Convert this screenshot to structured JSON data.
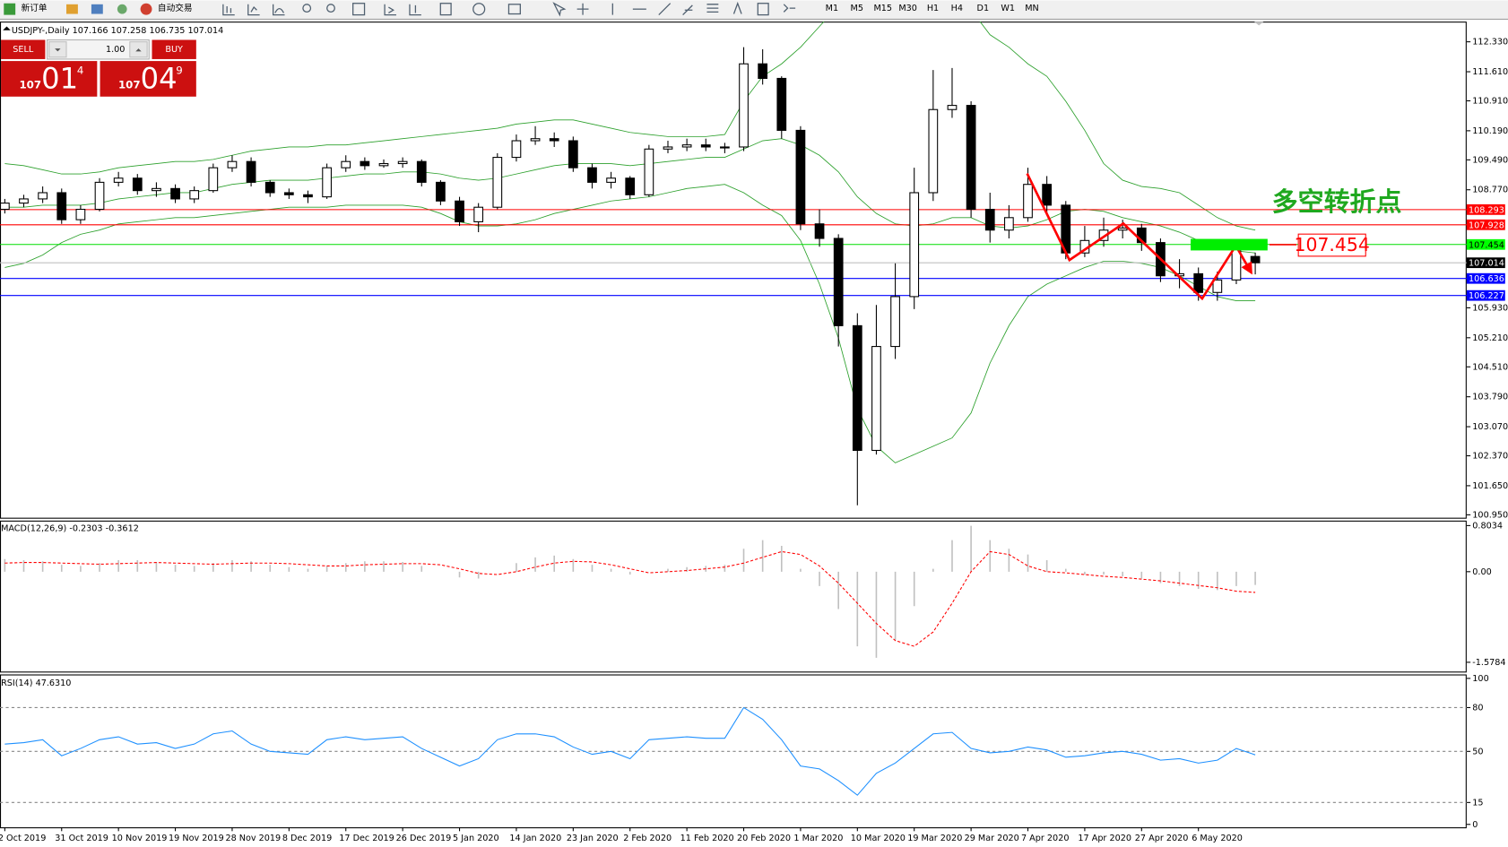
{
  "toolbar": {
    "new_order": "新订单",
    "auto_trading": "自动交易",
    "timeframes": [
      "M1",
      "M5",
      "M15",
      "M30",
      "H1",
      "H4",
      "D1",
      "W1",
      "MN"
    ]
  },
  "trade_panel": {
    "sell": "SELL",
    "buy": "BUY",
    "lots": "1.00",
    "sell_price": [
      "107",
      "01",
      "4"
    ],
    "buy_price": [
      "107",
      "04",
      "9"
    ]
  },
  "annotation": "多空转折点",
  "chart_data": [
    {
      "type": "candlestick",
      "title": "USDJPY-,Daily  107.166 107.258 106.735 107.014",
      "categories": [
        "2 Oct 2019",
        null,
        null,
        "31 Oct 2019",
        null,
        null,
        "10 Nov 2019",
        null,
        null,
        "19 Nov 2019",
        null,
        null,
        "28 Nov 2019",
        null,
        null,
        "8 Dec 2019",
        null,
        null,
        "17 Dec 2019",
        null,
        null,
        "26 Dec 2019",
        null,
        null,
        "5 Jan 2020",
        null,
        null,
        "14 Jan 2020",
        null,
        null,
        "23 Jan 2020",
        null,
        null,
        "2 Feb 2020",
        null,
        null,
        "11 Feb 2020",
        null,
        null,
        "20 Feb 2020",
        null,
        null,
        "1 Mar 2020",
        null,
        null,
        "10 Mar 2020",
        null,
        null,
        "19 Mar 2020",
        null,
        null,
        "29 Mar 2020",
        null,
        null,
        "7 Apr 2020",
        null,
        null,
        "17 Apr 2020",
        null,
        null,
        "27 Apr 2020",
        null,
        null,
        "6 May 2020",
        null,
        null,
        null
      ],
      "open": [
        108.3,
        108.45,
        108.55,
        108.7,
        108.05,
        108.3,
        108.95,
        109.05,
        108.75,
        108.8,
        108.55,
        108.75,
        109.3,
        109.45,
        108.95,
        108.7,
        108.65,
        108.6,
        109.3,
        109.45,
        109.35,
        109.4,
        109.45,
        108.95,
        108.5,
        108.0,
        108.35,
        109.55,
        109.95,
        110.0,
        109.95,
        109.3,
        108.95,
        109.05,
        108.65,
        109.75,
        109.8,
        109.85,
        109.8,
        109.8,
        111.8,
        111.45,
        110.2,
        107.95,
        107.6,
        105.5,
        102.5,
        105.0,
        106.2,
        108.7,
        110.7,
        110.8,
        108.3,
        107.8,
        108.1,
        108.9,
        108.4,
        107.25,
        107.55,
        107.8,
        107.85,
        107.5,
        106.7,
        106.75,
        106.3,
        106.6,
        107.166
      ],
      "high": [
        108.55,
        108.65,
        108.85,
        108.8,
        108.4,
        109.05,
        109.2,
        109.15,
        108.95,
        108.9,
        108.85,
        109.4,
        109.6,
        109.55,
        109.0,
        108.8,
        108.75,
        109.4,
        109.6,
        109.55,
        109.5,
        109.55,
        109.5,
        109.0,
        108.6,
        108.45,
        109.65,
        110.1,
        110.3,
        110.15,
        110.05,
        109.4,
        109.2,
        109.1,
        109.85,
        109.95,
        110.0,
        110.0,
        109.9,
        112.2,
        112.15,
        111.5,
        110.3,
        108.3,
        107.7,
        105.8,
        106.0,
        107.0,
        109.3,
        111.65,
        111.7,
        110.9,
        108.7,
        108.4,
        109.3,
        109.1,
        108.5,
        107.9,
        108.1,
        108.05,
        107.95,
        107.6,
        107.1,
        106.9,
        106.8,
        107.55,
        107.258
      ],
      "low": [
        108.2,
        108.35,
        108.45,
        107.95,
        107.95,
        108.25,
        108.85,
        108.65,
        108.6,
        108.45,
        108.45,
        108.7,
        109.2,
        108.85,
        108.6,
        108.55,
        108.45,
        108.55,
        109.2,
        109.25,
        109.3,
        109.3,
        108.85,
        108.4,
        107.9,
        107.75,
        108.3,
        109.45,
        109.85,
        109.8,
        109.2,
        108.8,
        108.8,
        108.55,
        108.6,
        109.65,
        109.7,
        109.7,
        109.65,
        109.7,
        111.3,
        110.0,
        107.8,
        107.4,
        105.0,
        101.18,
        102.4,
        104.7,
        105.9,
        108.5,
        110.5,
        108.1,
        107.5,
        107.6,
        108.0,
        108.2,
        107.1,
        107.15,
        107.4,
        107.6,
        107.3,
        106.55,
        106.4,
        106.1,
        106.1,
        106.5,
        106.735
      ],
      "close": [
        108.45,
        108.55,
        108.7,
        108.05,
        108.3,
        108.95,
        109.05,
        108.75,
        108.8,
        108.55,
        108.75,
        109.3,
        109.45,
        108.95,
        108.7,
        108.65,
        108.6,
        109.3,
        109.45,
        109.35,
        109.4,
        109.45,
        108.95,
        108.5,
        108.0,
        108.35,
        109.55,
        109.95,
        110.0,
        109.95,
        109.3,
        108.95,
        109.05,
        108.65,
        109.75,
        109.8,
        109.85,
        109.8,
        109.8,
        111.8,
        111.45,
        110.2,
        107.95,
        107.6,
        105.5,
        102.5,
        105.0,
        106.2,
        108.7,
        110.7,
        110.8,
        108.3,
        107.8,
        108.1,
        108.9,
        108.4,
        107.25,
        107.55,
        107.8,
        107.85,
        107.5,
        106.7,
        106.75,
        106.3,
        106.6,
        107.45,
        107.014
      ],
      "bands": [
        {
          "color": "#2ca02c",
          "values": [
            109.4,
            109.35,
            109.25,
            109.15,
            109.15,
            109.2,
            109.3,
            109.35,
            109.4,
            109.45,
            109.45,
            109.5,
            109.6,
            109.7,
            109.75,
            109.8,
            109.8,
            109.85,
            109.85,
            109.9,
            109.95,
            110.0,
            110.05,
            110.1,
            110.15,
            110.2,
            110.25,
            110.35,
            110.4,
            110.45,
            110.45,
            110.35,
            110.25,
            110.15,
            110.1,
            110.05,
            110.05,
            110.05,
            110.1,
            110.9,
            111.5,
            111.8,
            112.2,
            112.7,
            113.2,
            113.6,
            113.8,
            113.7,
            113.4,
            113.2,
            113.3,
            113.1,
            112.5,
            112.2,
            111.8,
            111.5,
            110.9,
            110.2,
            109.4,
            109.0,
            108.85,
            108.8,
            108.7,
            108.4,
            108.1,
            107.9,
            107.8
          ]
        },
        {
          "color": "#2ca02c",
          "values": [
            108.35,
            108.35,
            108.4,
            108.4,
            108.4,
            108.45,
            108.55,
            108.6,
            108.65,
            108.7,
            108.7,
            108.8,
            108.9,
            108.95,
            109.0,
            109.0,
            109.0,
            109.05,
            109.1,
            109.15,
            109.15,
            109.2,
            109.2,
            109.15,
            109.05,
            109.0,
            109.05,
            109.15,
            109.25,
            109.35,
            109.4,
            109.4,
            109.4,
            109.35,
            109.4,
            109.45,
            109.5,
            109.55,
            109.55,
            109.75,
            109.95,
            110.0,
            109.85,
            109.6,
            109.2,
            108.6,
            108.2,
            107.95,
            107.9,
            107.95,
            108.1,
            108.1,
            107.9,
            107.85,
            107.9,
            108.05,
            108.25,
            108.3,
            108.25,
            108.1,
            108.0,
            107.9,
            107.75,
            107.55,
            107.4,
            107.3,
            107.25
          ]
        },
        {
          "color": "#2ca02c",
          "values": [
            106.9,
            107.0,
            107.2,
            107.5,
            107.7,
            107.8,
            107.95,
            108.0,
            108.05,
            108.1,
            108.1,
            108.15,
            108.2,
            108.25,
            108.3,
            108.35,
            108.35,
            108.35,
            108.4,
            108.4,
            108.4,
            108.4,
            108.35,
            108.2,
            108.0,
            107.9,
            107.9,
            107.95,
            108.05,
            108.2,
            108.3,
            108.4,
            108.5,
            108.55,
            108.6,
            108.7,
            108.8,
            108.85,
            108.9,
            108.7,
            108.4,
            108.15,
            107.55,
            106.5,
            105.2,
            103.5,
            102.6,
            102.2,
            102.4,
            102.6,
            102.8,
            103.4,
            104.6,
            105.5,
            106.2,
            106.5,
            106.7,
            106.9,
            107.05,
            107.05,
            107.0,
            106.9,
            106.7,
            106.45,
            106.2,
            106.1,
            106.1
          ]
        }
      ],
      "ylim": [
        100.88,
        112.816
      ],
      "yticks": [
        {
          "value": 112.33,
          "label": "112.330"
        },
        {
          "value": 111.61,
          "label": "111.610"
        },
        {
          "value": 110.91,
          "label": "110.910"
        },
        {
          "value": 110.19,
          "label": "110.190"
        },
        {
          "value": 109.49,
          "label": "109.490"
        },
        {
          "value": 108.77,
          "label": "108.770"
        },
        {
          "value": 105.93,
          "label": "105.930"
        },
        {
          "value": 105.21,
          "label": "105.210"
        },
        {
          "value": 104.51,
          "label": "104.510"
        },
        {
          "value": 103.79,
          "label": "103.790"
        },
        {
          "value": 103.07,
          "label": "103.070"
        },
        {
          "value": 102.37,
          "label": "102.370"
        },
        {
          "value": 101.65,
          "label": "101.650"
        },
        {
          "value": 100.95,
          "label": "100.950"
        }
      ],
      "levels": [
        108.293,
        107.928,
        107.454,
        107.014,
        106.636,
        106.227
      ],
      "level_colors": [
        "#ff0000",
        "#ff0000",
        "#00dd00",
        "#c0c0c0",
        "#0000ff",
        "#0000ff"
      ],
      "level_label_fills": [
        "#ff0000",
        "#ff0000",
        "#00ff00",
        "#000000",
        "#0000ff",
        "#0000ff"
      ]
    },
    {
      "type": "macd",
      "title": "MACD(12,26,9) -0.2303 -0.3612",
      "values": [
        0.22,
        0.2,
        0.18,
        0.12,
        0.1,
        0.15,
        0.2,
        0.2,
        0.17,
        0.12,
        0.1,
        0.15,
        0.2,
        0.18,
        0.12,
        0.08,
        0.05,
        0.1,
        0.15,
        0.18,
        0.18,
        0.17,
        0.1,
        0.0,
        -0.1,
        -0.12,
        0.0,
        0.15,
        0.25,
        0.28,
        0.22,
        0.12,
        0.05,
        -0.05,
        0.0,
        0.05,
        0.08,
        0.1,
        0.12,
        0.4,
        0.55,
        0.45,
        0.05,
        -0.25,
        -0.65,
        -1.3,
        -1.5,
        -1.2,
        -0.6,
        0.05,
        0.55,
        0.8,
        0.55,
        0.4,
        0.3,
        0.2,
        0.05,
        -0.05,
        -0.05,
        -0.08,
        -0.12,
        -0.2,
        -0.25,
        -0.3,
        -0.32,
        -0.25,
        -0.2303
      ],
      "signal": [
        0.15,
        0.16,
        0.16,
        0.15,
        0.14,
        0.13,
        0.14,
        0.15,
        0.16,
        0.15,
        0.14,
        0.13,
        0.14,
        0.15,
        0.15,
        0.14,
        0.12,
        0.1,
        0.1,
        0.12,
        0.13,
        0.14,
        0.14,
        0.12,
        0.05,
        -0.03,
        -0.05,
        0.0,
        0.08,
        0.15,
        0.18,
        0.17,
        0.12,
        0.05,
        -0.02,
        0.0,
        0.02,
        0.05,
        0.08,
        0.15,
        0.25,
        0.35,
        0.3,
        0.1,
        -0.2,
        -0.55,
        -0.9,
        -1.2,
        -1.3,
        -1.05,
        -0.55,
        0.0,
        0.35,
        0.3,
        0.1,
        0.0,
        -0.02,
        -0.05,
        -0.08,
        -0.1,
        -0.13,
        -0.16,
        -0.2,
        -0.24,
        -0.28,
        -0.34,
        -0.3612
      ],
      "color": "#c0c0c0",
      "signal_color": "#ff0000",
      "ylim": [
        -1.74,
        0.89
      ],
      "yticks": [
        0.8034,
        {
          "value": 0,
          "label": "0.00"
        },
        -1.5784
      ]
    },
    {
      "type": "line",
      "title": "RSI(14) 47.6310",
      "values": [
        55,
        56,
        58,
        47,
        52,
        58,
        60,
        55,
        56,
        52,
        55,
        62,
        64,
        55,
        50,
        49,
        48,
        58,
        60,
        58,
        59,
        60,
        52,
        46,
        40,
        45,
        58,
        62,
        62,
        60,
        53,
        48,
        50,
        45,
        58,
        59,
        60,
        59,
        59,
        80,
        72,
        58,
        40,
        38,
        30,
        20,
        35,
        42,
        52,
        62,
        63,
        52,
        49,
        50,
        53,
        51,
        46,
        47,
        49,
        50,
        48,
        44,
        45,
        42,
        44,
        52,
        47.631
      ],
      "color": "#1e90ff",
      "ylim": [
        -2,
        102.7
      ],
      "yticks": [
        100,
        80,
        50,
        15,
        0
      ],
      "levels": [
        80,
        50,
        15
      ]
    }
  ]
}
